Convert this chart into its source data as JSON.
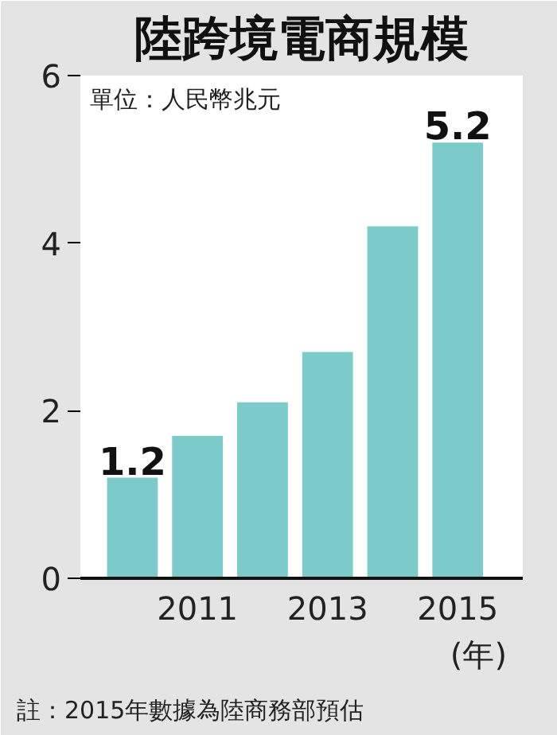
{
  "chart_data": {
    "type": "bar",
    "title": "陸跨境電商規模",
    "ylabel": "單位：人民幣兆元",
    "xlabel": "(年)",
    "x": [
      2010,
      2011,
      2012,
      2013,
      2014,
      2015
    ],
    "values": [
      1.2,
      1.7,
      2.1,
      2.7,
      4.2,
      5.2
    ],
    "value_labels": [
      "1.2",
      null,
      null,
      null,
      null,
      "5.2"
    ],
    "color": "#7ccaca",
    "xlim": [
      2009.2,
      2016
    ],
    "xticks": [
      2011,
      2013,
      2015
    ],
    "ylim": [
      0,
      6
    ],
    "yticks": [
      0,
      2,
      4,
      6
    ],
    "grid": false,
    "annotations": [
      "註：2015年數據為陸商務部預估"
    ]
  }
}
